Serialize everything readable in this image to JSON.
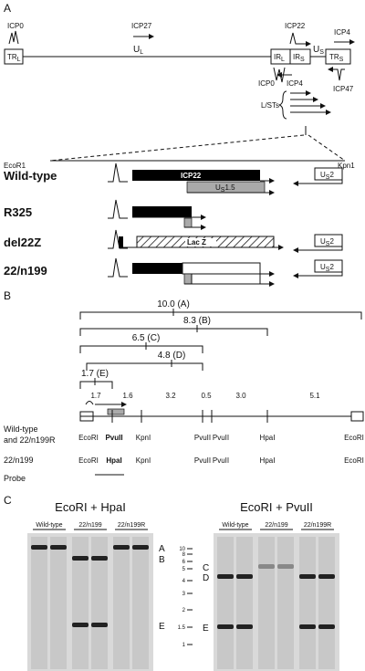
{
  "panel_a": {
    "letter": "A",
    "genome": {
      "icp0_top": "ICP0",
      "icp27": "ICP27",
      "icp22_top": "ICP22",
      "icp4_top": "ICP4",
      "tr_l": {
        "main": "TR",
        "sub": "L"
      },
      "u_l": {
        "main": "U",
        "sub": "L"
      },
      "ir_l": {
        "main": "IR",
        "sub": "L"
      },
      "ir_s": {
        "main": "IR",
        "sub": "S"
      },
      "u_s": {
        "main": "U",
        "sub": "S"
      },
      "tr_s": {
        "main": "TR",
        "sub": "S"
      },
      "icp0_bottom": "ICP0",
      "icp4_bottom": "ICP4",
      "icp47": "ICP47",
      "lsts": "L/STs"
    },
    "ecor1": "EcoR1",
    "kpn1": "Kpn1",
    "constructs": [
      {
        "name": "Wild-type"
      },
      {
        "name": "R325"
      },
      {
        "name": "del22Z"
      },
      {
        "name": "22/n199"
      }
    ],
    "icp22_label": "ICP22",
    "us15": {
      "main": "U",
      "sub": "S",
      "tail": "1.5"
    },
    "lacz": "Lac Z",
    "us2": {
      "main": "U",
      "sub": "S",
      "tail": "2"
    }
  },
  "panel_b": {
    "letter": "B",
    "fragments": [
      "10.0 (A)",
      "8.3 (B)",
      "6.5 (C)",
      "4.8 (D)",
      "1.7 (E)"
    ],
    "segment_sizes": [
      "1.7",
      "1.6",
      "3.2",
      "0.5",
      "3.0",
      "5.1"
    ],
    "wild_type_label": [
      "Wild-type",
      "and 22/n199R"
    ],
    "wild_type_sites": [
      "EcoRI",
      "PvuII",
      "KpnI",
      "PvuII",
      "PvuII",
      "HpaI",
      "EcoRI"
    ],
    "mutant_label": "22/n199",
    "mutant_sites": [
      "EcoRI",
      "HpaI",
      "KpnI",
      "PvuII",
      "PvuII",
      "HpaI",
      "EcoRI"
    ],
    "probe": "Probe"
  },
  "panel_c": {
    "letter": "C",
    "gels": [
      {
        "title": "EcoRI + HpaI",
        "lanes": [
          "Wild-type",
          "22/n199",
          "22/n199R"
        ],
        "bands": [
          "A",
          "B",
          "E"
        ]
      },
      {
        "title": "EcoRI + PvuII",
        "lanes": [
          "Wild-type",
          "22/n199",
          "22/n199R"
        ],
        "bands": [
          "C",
          "D",
          "E"
        ]
      }
    ],
    "ladder": [
      "10",
      "8",
      "6",
      "5",
      "4",
      "3",
      "2",
      "1.5",
      "1"
    ]
  }
}
